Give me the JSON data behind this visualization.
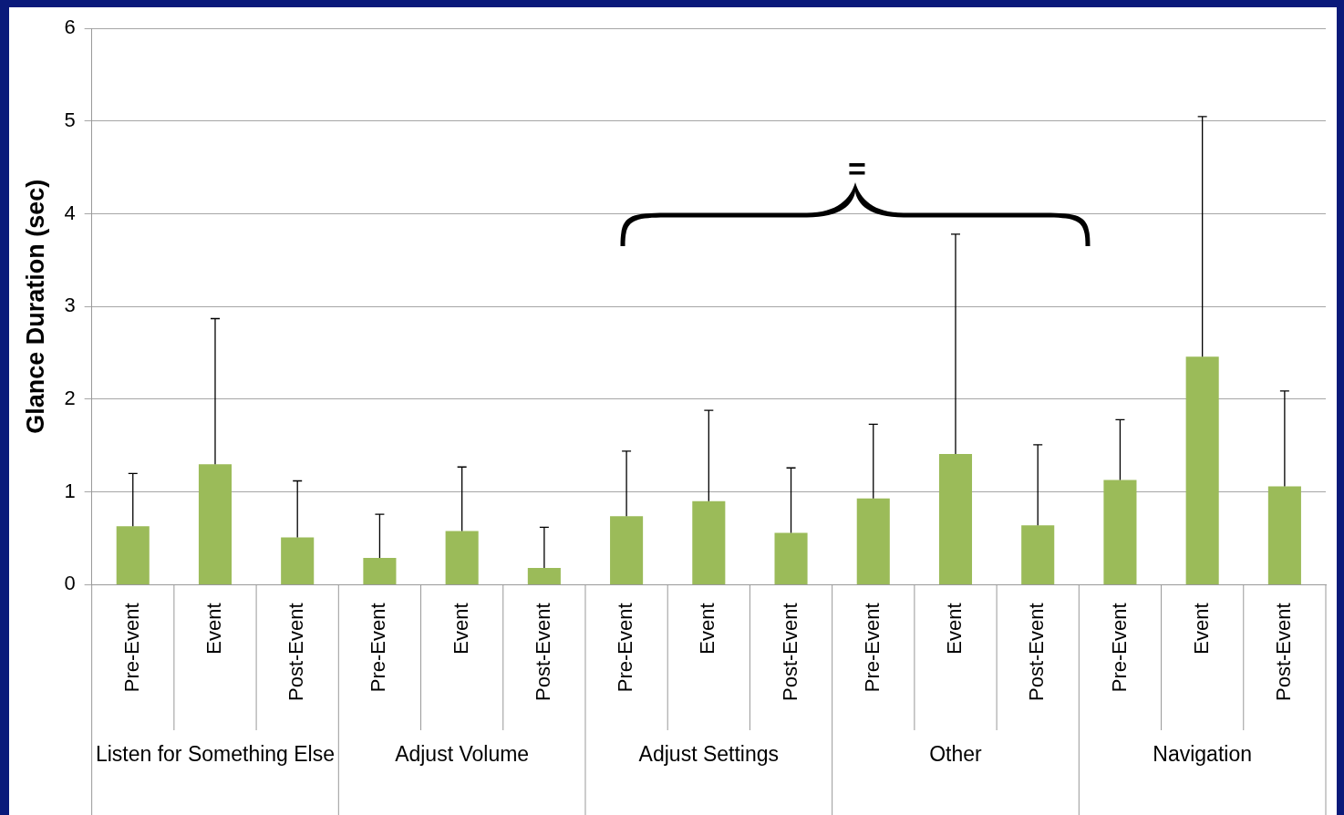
{
  "chart_data": {
    "type": "bar",
    "ylabel": "Glance Duration (sec)",
    "categories": [
      "Pre-Event",
      "Event",
      "Post-Event",
      "Pre-Event",
      "Event",
      "Post-Event",
      "Pre-Event",
      "Event",
      "Post-Event",
      "Pre-Event",
      "Event",
      "Post-Event",
      "Pre-Event",
      "Event",
      "Post-Event"
    ],
    "values": [
      0.63,
      1.3,
      0.51,
      0.29,
      0.58,
      0.18,
      0.74,
      0.9,
      0.56,
      0.93,
      1.41,
      0.64,
      1.13,
      2.46,
      1.06
    ],
    "errors": [
      [
        0.63,
        1.2
      ],
      [
        1.3,
        2.87
      ],
      [
        0.51,
        1.12
      ],
      [
        0.29,
        0.76
      ],
      [
        0.58,
        1.27
      ],
      [
        0.18,
        0.62
      ],
      [
        0.74,
        1.44
      ],
      [
        0.9,
        1.88
      ],
      [
        0.56,
        1.26
      ],
      [
        0.93,
        1.73
      ],
      [
        1.41,
        3.78
      ],
      [
        0.64,
        1.51
      ],
      [
        1.13,
        1.78
      ],
      [
        2.46,
        5.05
      ],
      [
        1.06,
        2.09
      ]
    ],
    "color": "#9bbb59",
    "ylim": [
      0,
      6
    ],
    "yticks": [
      0,
      1,
      2,
      3,
      4,
      5,
      6
    ],
    "grid": "y",
    "legend": false,
    "annotations": [
      "=",
      "Listen for Something Else",
      "Adjust Volume",
      "Adjust Settings",
      "Other",
      "Navigation"
    ]
  }
}
